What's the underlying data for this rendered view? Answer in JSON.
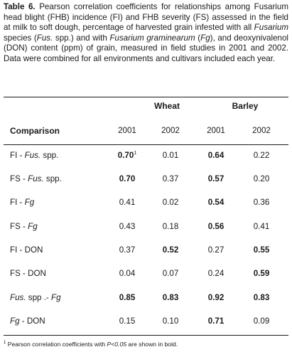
{
  "caption": {
    "label": "Table 6.",
    "parts": [
      {
        "t": " Pearson correlation coefficients for relationships among Fusarium head blight (FHB) incidence (FI) and FHB severity (FS) assessed in the field at milk to soft dough, percentage of harvested grain infested with all ",
        "i": false
      },
      {
        "t": "Fusarium",
        "i": true
      },
      {
        "t": " species (",
        "i": false
      },
      {
        "t": "Fus.",
        "i": true
      },
      {
        "t": " spp.) and with ",
        "i": false
      },
      {
        "t": "Fusarium graminearum",
        "i": true
      },
      {
        "t": " (",
        "i": false
      },
      {
        "t": "Fg",
        "i": true
      },
      {
        "t": "), and deoxynivalenol (DON) content (ppm) of grain, measured in field studies in 2001 and 2002. Data were combined for all environments and cultivars included each year.",
        "i": false
      }
    ]
  },
  "table": {
    "group_headers": [
      "Wheat",
      "Barley"
    ],
    "comparison_header": "Comparison",
    "year_headers": [
      "2001",
      "2002",
      "2001",
      "2002"
    ],
    "rows": [
      {
        "label": [
          {
            "t": "FI - ",
            "i": false
          },
          {
            "t": "Fus.",
            "i": true
          },
          {
            "t": " spp.",
            "i": false
          }
        ],
        "cells": [
          {
            "v": "0.70",
            "b": true,
            "sup": "1"
          },
          {
            "v": "0.01",
            "b": false
          },
          {
            "v": "0.64",
            "b": true
          },
          {
            "v": "0.22",
            "b": false
          }
        ]
      },
      {
        "label": [
          {
            "t": "FS - ",
            "i": false
          },
          {
            "t": "Fus.",
            "i": true
          },
          {
            "t": " spp.",
            "i": false
          }
        ],
        "cells": [
          {
            "v": "0.70",
            "b": true
          },
          {
            "v": "0.37",
            "b": false
          },
          {
            "v": "0.57",
            "b": true
          },
          {
            "v": "0.20",
            "b": false
          }
        ]
      },
      {
        "label": [
          {
            "t": "FI - ",
            "i": false
          },
          {
            "t": "Fg",
            "i": true
          }
        ],
        "cells": [
          {
            "v": "0.41",
            "b": false
          },
          {
            "v": "0.02",
            "b": false
          },
          {
            "v": "0.54",
            "b": true
          },
          {
            "v": "0.36",
            "b": false
          }
        ]
      },
      {
        "label": [
          {
            "t": "FS - ",
            "i": false
          },
          {
            "t": "Fg",
            "i": true
          }
        ],
        "cells": [
          {
            "v": "0.43",
            "b": false
          },
          {
            "v": "0.18",
            "b": false
          },
          {
            "v": "0.56",
            "b": true
          },
          {
            "v": "0.41",
            "b": false
          }
        ]
      },
      {
        "label": [
          {
            "t": "FI - DON",
            "i": false
          }
        ],
        "cells": [
          {
            "v": "0.37",
            "b": false
          },
          {
            "v": "0.52",
            "b": true
          },
          {
            "v": "0.27",
            "b": false
          },
          {
            "v": "0.55",
            "b": true
          }
        ]
      },
      {
        "label": [
          {
            "t": "FS - DON",
            "i": false
          }
        ],
        "cells": [
          {
            "v": "0.04",
            "b": false
          },
          {
            "v": "0.07",
            "b": false
          },
          {
            "v": "0.24",
            "b": false
          },
          {
            "v": "0.59",
            "b": true
          }
        ]
      },
      {
        "label": [
          {
            "t": "Fus.",
            "i": true
          },
          {
            "t": " spp .- ",
            "i": false
          },
          {
            "t": "Fg",
            "i": true
          }
        ],
        "cells": [
          {
            "v": "0.85",
            "b": true
          },
          {
            "v": "0.83",
            "b": true
          },
          {
            "v": "0.92",
            "b": true
          },
          {
            "v": "0.83",
            "b": true
          }
        ]
      },
      {
        "label": [
          {
            "t": "Fg",
            "i": true
          },
          {
            "t": " - DON",
            "i": false
          }
        ],
        "cells": [
          {
            "v": "0.15",
            "b": false
          },
          {
            "v": "0.10",
            "b": false
          },
          {
            "v": "0.71",
            "b": true
          },
          {
            "v": "0.09",
            "b": false
          }
        ]
      }
    ]
  },
  "footnote": {
    "marker": "1",
    "text_before": " Pearson correlation coefficients with ",
    "italic": "P<0.05",
    "text_after": " are shown in bold."
  }
}
